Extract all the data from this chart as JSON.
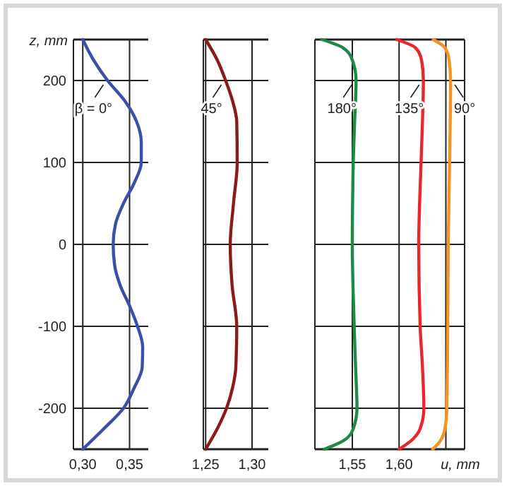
{
  "chart_data": [
    {
      "type": "line",
      "ylabel": "z, mm",
      "xlim": [
        0.29,
        0.37
      ],
      "xticks": [
        {
          "value": 0.3,
          "label": "0,30"
        },
        {
          "value": 0.35,
          "label": "0,35"
        }
      ],
      "ylim": [
        -250,
        250
      ],
      "yticks": [
        -200,
        -100,
        0,
        100,
        200
      ],
      "grid": true,
      "series": [
        {
          "name": "β = 0°",
          "color": "#3a4fa8",
          "x": [
            0.3,
            0.3115,
            0.3265,
            0.345,
            0.3575,
            0.3625,
            0.3625,
            0.355,
            0.3435,
            0.335,
            0.3325,
            0.334,
            0.34,
            0.35,
            0.3585,
            0.364,
            0.3635,
            0.355,
            0.3435,
            0.3225,
            0.3
          ],
          "values": [
            250,
            225,
            200,
            175,
            150,
            125,
            100,
            75,
            50,
            25,
            0,
            -25,
            -50,
            -75,
            -100,
            -125,
            -150,
            -175,
            -200,
            -225,
            -250
          ]
        }
      ]
    },
    {
      "type": "line",
      "xlim": [
        1.2475,
        1.3175
      ],
      "xticks": [
        {
          "value": 1.25,
          "label": "1,25"
        },
        {
          "value": 1.3,
          "label": "1,30"
        }
      ],
      "ylim": [
        -250,
        250
      ],
      "yticks": [
        -200,
        -100,
        0,
        100,
        200
      ],
      "tick_labels": "x",
      "grid": true,
      "series": [
        {
          "name": "45°",
          "color": "#8b1a1a",
          "x": [
            1.25,
            1.2625,
            1.2715,
            1.279,
            1.2835,
            1.284,
            1.28,
            1.2765,
            1.2785,
            1.2835,
            1.2825,
            1.279,
            1.2725,
            1.2625,
            1.25
          ],
          "values": [
            250,
            225,
            200,
            175,
            150,
            100,
            50,
            0,
            -50,
            -100,
            -150,
            -175,
            -200,
            -225,
            -250
          ]
        }
      ]
    },
    {
      "type": "line",
      "xlabel": "u, mm",
      "xlim": [
        1.51,
        1.67
      ],
      "xticks": [
        {
          "value": 1.55,
          "label": "1,55"
        },
        {
          "value": 1.6,
          "label": "1,60"
        },
        {
          "value": 1.65,
          "label": null
        }
      ],
      "ylim": [
        -250,
        250
      ],
      "yticks": [
        -200,
        -100,
        0,
        100,
        200
      ],
      "tick_labels": "x",
      "grid": true,
      "series": [
        {
          "name": "180°",
          "color": "#1e8a45",
          "x": [
            1.5175,
            1.54,
            1.55,
            1.554,
            1.5525,
            1.551,
            1.55,
            1.552,
            1.5535,
            1.555,
            1.551,
            1.54,
            1.52
          ],
          "values": [
            250,
            240,
            225,
            200,
            150,
            100,
            0,
            -100,
            -150,
            -200,
            -225,
            -240,
            -250
          ]
        },
        {
          "name": "135°",
          "color": "#e8262b",
          "x": [
            1.5975,
            1.6175,
            1.624,
            1.626,
            1.625,
            1.6235,
            1.621,
            1.6225,
            1.625,
            1.6265,
            1.6225,
            1.6125,
            1.6
          ],
          "values": [
            250,
            240,
            225,
            200,
            150,
            100,
            0,
            -100,
            -150,
            -200,
            -225,
            -240,
            -250
          ]
        },
        {
          "name": "90°",
          "color": "#f39422",
          "x": [
            1.6365,
            1.649,
            1.6535,
            1.655,
            1.654,
            1.6525,
            1.652,
            1.651,
            1.649,
            1.644,
            1.636
          ],
          "values": [
            250,
            240,
            225,
            200,
            100,
            0,
            -100,
            -200,
            -225,
            -240,
            -250
          ]
        }
      ]
    }
  ]
}
